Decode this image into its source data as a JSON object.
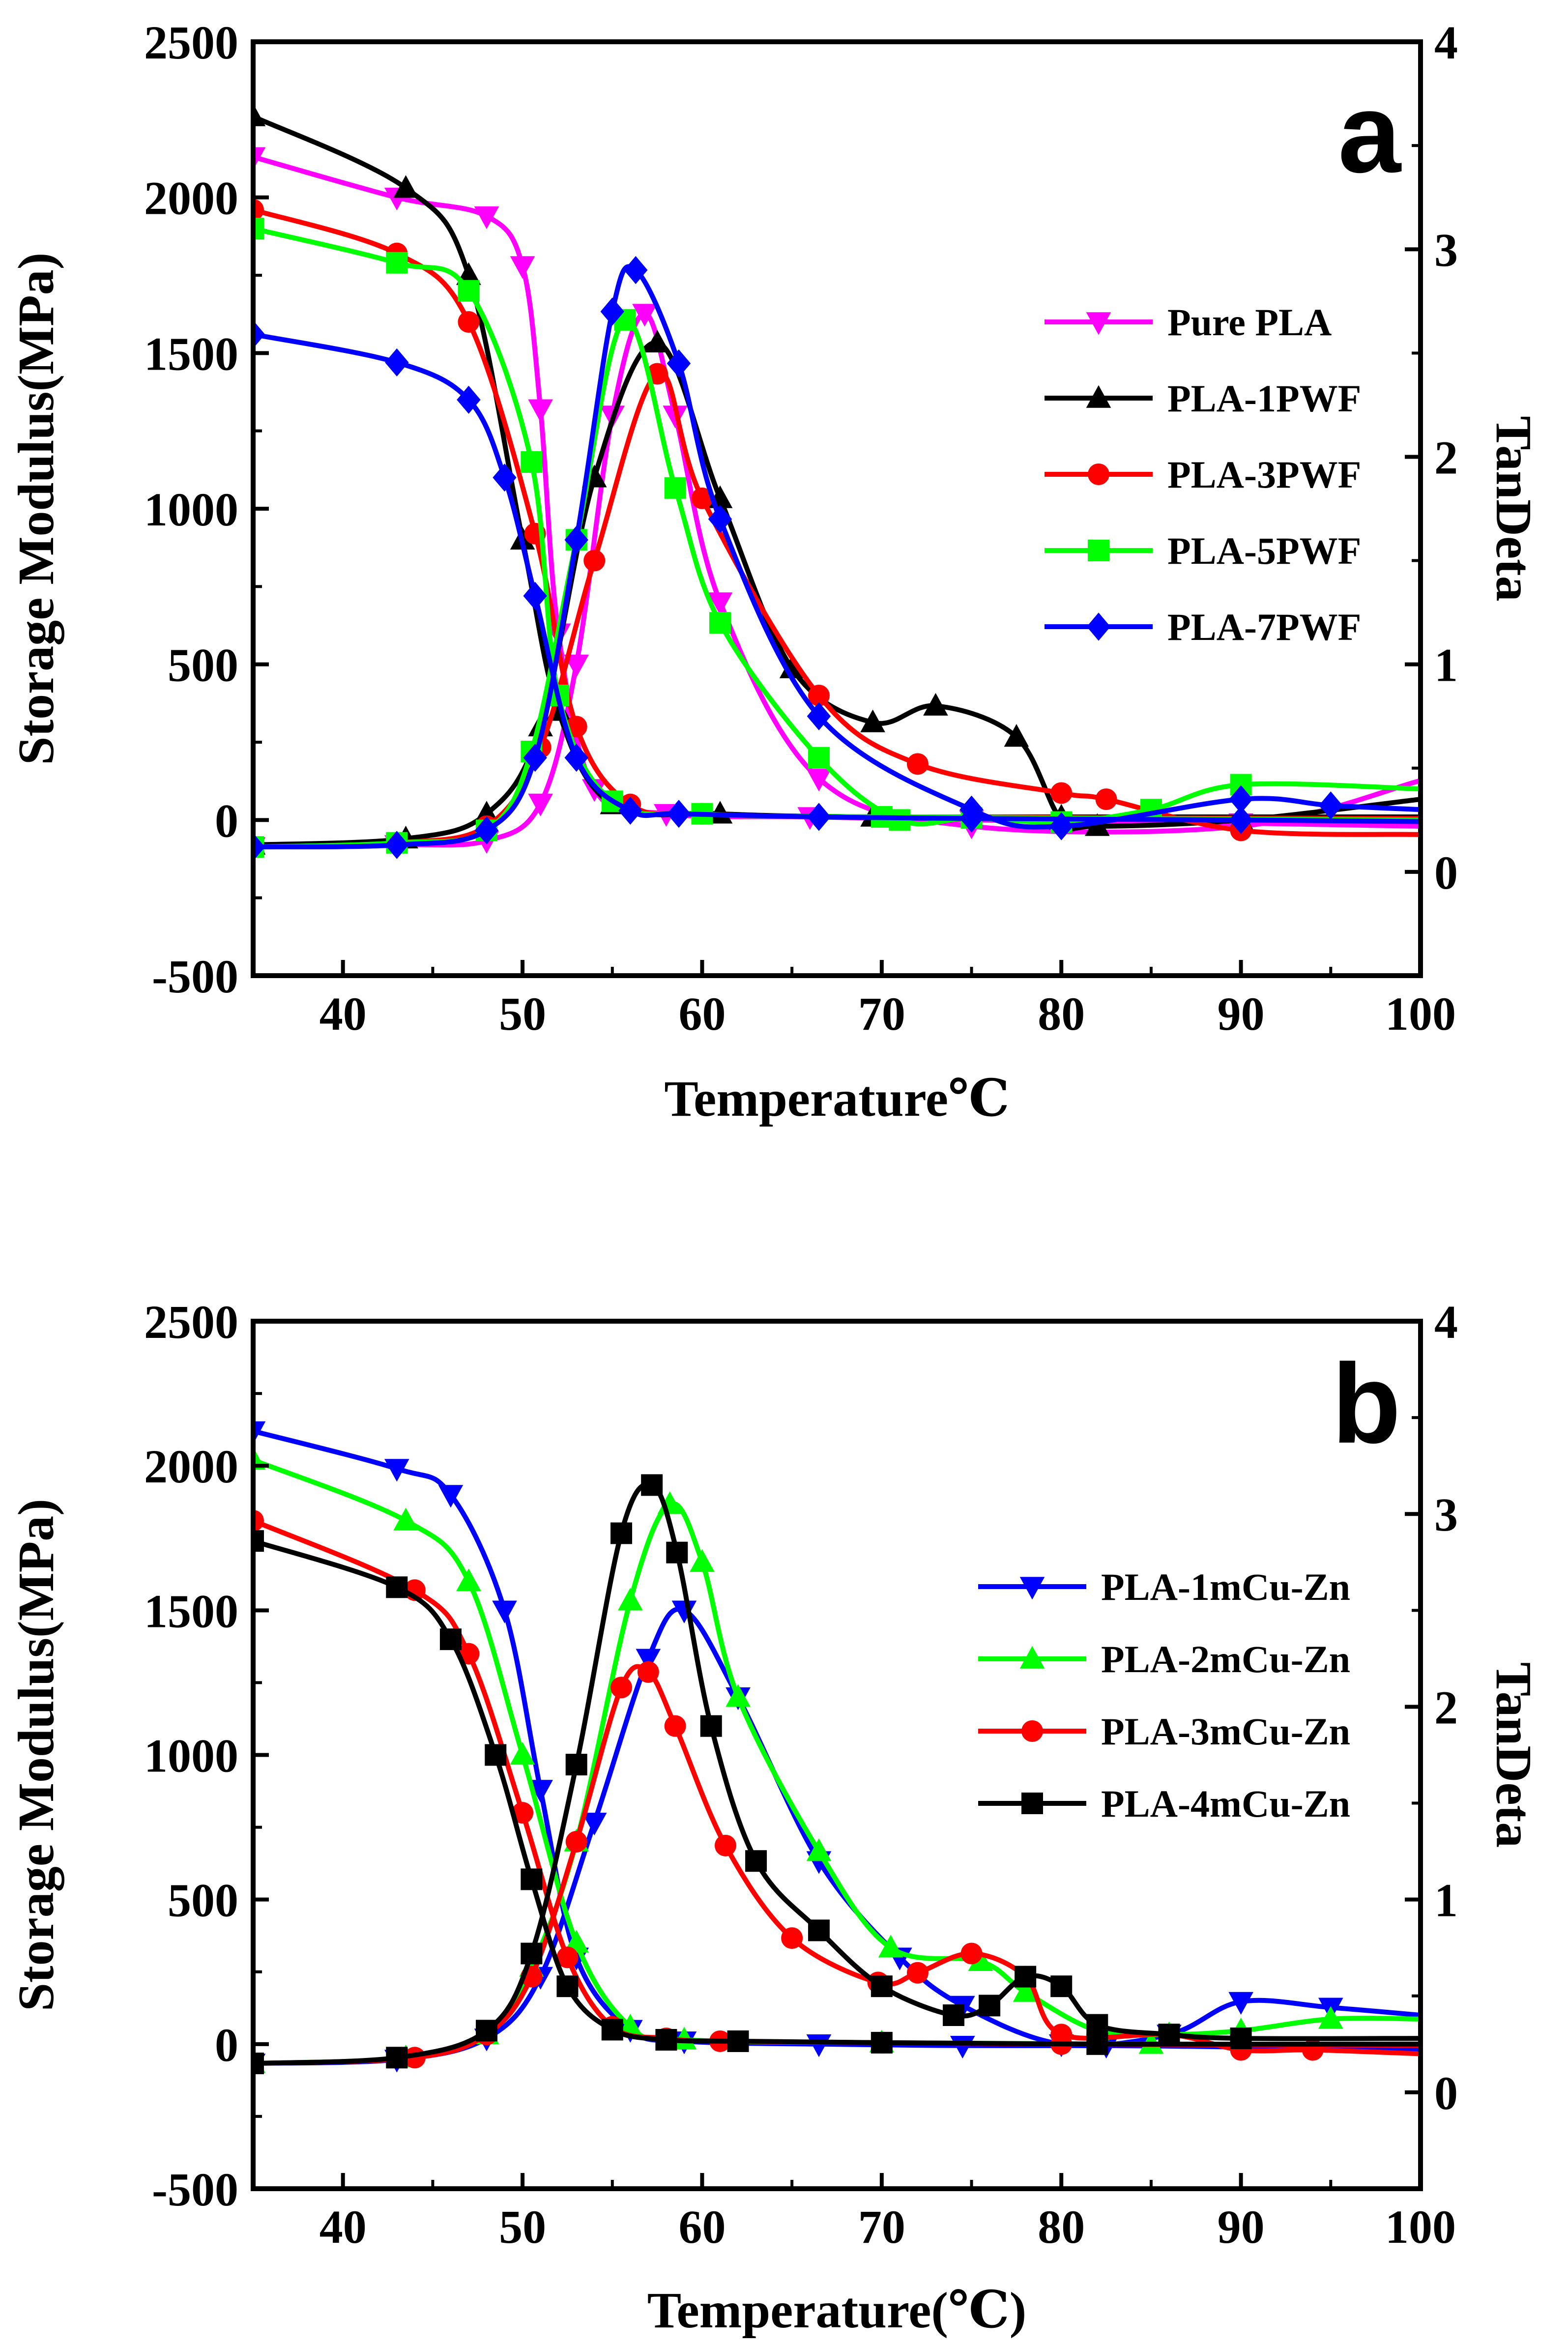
{
  "chart_data": [
    {
      "type": "line",
      "panel_label": "a",
      "xlabel": "Temperature℃",
      "ylabel_left": "Storage Modulus(MPa)",
      "ylabel_right": "TanDeta",
      "xlim": [
        35,
        100
      ],
      "ylim_left": [
        -500,
        2500
      ],
      "ylim_right": [
        -0.5,
        4
      ],
      "x_ticks": [
        40,
        50,
        60,
        70,
        80,
        90,
        100
      ],
      "y_ticks_left": [
        -500,
        0,
        500,
        1000,
        1500,
        2000,
        2500
      ],
      "y_ticks_right": [
        0,
        1,
        2,
        3,
        4
      ],
      "legend_position": "center-right",
      "series": [
        {
          "name": "Pure PLA",
          "color": "#ff00ff",
          "marker": "triangle-down",
          "storage_modulus": {
            "x": [
              35,
              43,
              48,
              50,
              51,
              52,
              54,
              58,
              66,
              75,
              90,
              100
            ],
            "y": [
              2130,
              2000,
              1940,
              1780,
              1320,
              600,
              100,
              20,
              10,
              0,
              -10,
              -20
            ]
          },
          "tan_delta": {
            "x": [
              35,
              43,
              48,
              51,
              53,
              55,
              56.8,
              58.5,
              61,
              66.5,
              75,
              90,
              100
            ],
            "y": [
              0.12,
              0.13,
              0.15,
              0.33,
              1.0,
              2.2,
              2.69,
              2.2,
              1.3,
              0.45,
              0.22,
              0.22,
              0.44
            ]
          }
        },
        {
          "name": "PLA-1PWF",
          "color": "#000000",
          "marker": "triangle-up",
          "storage_modulus": {
            "x": [
              35,
              43.5,
              47,
              50,
              52,
              55,
              61,
              69.5,
              80,
              100
            ],
            "y": [
              2260,
              2030,
              1750,
              900,
              350,
              50,
              20,
              10,
              10,
              10
            ]
          },
          "tan_delta": {
            "x": [
              35,
              43.5,
              48,
              51,
              54,
              57.5,
              61,
              65,
              69.5,
              73,
              77.5,
              80,
              82,
              90,
              100
            ],
            "y": [
              0.13,
              0.16,
              0.28,
              0.7,
              1.9,
              2.55,
              1.8,
              0.98,
              0.72,
              0.8,
              0.65,
              0.25,
              0.22,
              0.25,
              0.35
            ]
          }
        },
        {
          "name": "PLA-3PWF",
          "color": "#ff0000",
          "marker": "circle",
          "storage_modulus": {
            "x": [
              35,
              43,
              47,
              50.7,
              53,
              56,
              60,
              70,
              100
            ],
            "y": [
              1960,
              1820,
              1600,
              920,
              300,
              50,
              20,
              10,
              5
            ]
          },
          "tan_delta": {
            "x": [
              35,
              43,
              48,
              51,
              54,
              57.5,
              60,
              66.5,
              72,
              80,
              82.5,
              90,
              100
            ],
            "y": [
              0.12,
              0.14,
              0.22,
              0.6,
              1.5,
              2.4,
              1.8,
              0.85,
              0.52,
              0.38,
              0.35,
              0.2,
              0.18
            ]
          }
        },
        {
          "name": "PLA-5PWF",
          "color": "#00ff00",
          "marker": "square",
          "storage_modulus": {
            "x": [
              35,
              43,
              47,
              50.5,
              52,
              55,
              60,
              70,
              100
            ],
            "y": [
              1900,
              1790,
              1700,
              1150,
              400,
              60,
              20,
              10,
              0
            ]
          },
          "tan_delta": {
            "x": [
              35,
              43,
              48,
              50.5,
              53,
              55.7,
              58.5,
              61,
              66.5,
              71,
              75,
              80,
              85,
              90,
              100
            ],
            "y": [
              0.12,
              0.14,
              0.2,
              0.58,
              1.6,
              2.66,
              1.85,
              1.2,
              0.55,
              0.25,
              0.26,
              0.24,
              0.3,
              0.42,
              0.4
            ]
          }
        },
        {
          "name": "PLA-7PWF",
          "color": "#0000ff",
          "marker": "diamond",
          "storage_modulus": {
            "x": [
              35,
              43,
              47,
              49,
              50.7,
              53,
              56,
              58.7,
              66.5,
              75,
              90,
              100
            ],
            "y": [
              1560,
              1470,
              1350,
              1100,
              720,
              200,
              30,
              20,
              10,
              5,
              0,
              -5
            ]
          },
          "tan_delta": {
            "x": [
              35,
              43,
              48,
              50.7,
              53,
              55,
              56.3,
              58.7,
              61,
              66.5,
              75,
              80,
              90,
              95,
              100
            ],
            "y": [
              0.12,
              0.13,
              0.2,
              0.55,
              1.6,
              2.7,
              2.9,
              2.45,
              1.7,
              0.75,
              0.3,
              0.22,
              0.35,
              0.32,
              0.3
            ]
          }
        }
      ]
    },
    {
      "type": "line",
      "panel_label": "b",
      "xlabel": "Temperature(℃)",
      "ylabel_left": "Storage Modulus(MPa)",
      "ylabel_right": "TanDeta",
      "xlim": [
        35,
        100
      ],
      "ylim_left": [
        -500,
        2500
      ],
      "ylim_right": [
        -0.5,
        4
      ],
      "x_ticks": [
        40,
        50,
        60,
        70,
        80,
        90,
        100
      ],
      "y_ticks_left": [
        -500,
        0,
        500,
        1000,
        1500,
        2000,
        2500
      ],
      "y_ticks_right": [
        0,
        1,
        2,
        3,
        4
      ],
      "legend_position": "center-right",
      "series": [
        {
          "name": "PLA-1mCu-Zn",
          "color": "#0000ff",
          "marker": "triangle-down",
          "storage_modulus": {
            "x": [
              35,
              43,
              46,
              49,
              51,
              53,
              56,
              59,
              66.5,
              74.5,
              82.5,
              90,
              100
            ],
            "y": [
              2120,
              1990,
              1900,
              1500,
              880,
              300,
              50,
              10,
              0,
              -5,
              -5,
              -10,
              -20
            ]
          },
          "tan_delta": {
            "x": [
              35,
              43,
              48,
              51,
              54,
              57,
              59,
              62,
              66.5,
              71,
              74.5,
              80,
              86,
              90,
              95,
              100
            ],
            "y": [
              0.15,
              0.17,
              0.28,
              0.6,
              1.4,
              2.25,
              2.5,
              2.05,
              1.2,
              0.7,
              0.45,
              0.25,
              0.3,
              0.47,
              0.44,
              0.4
            ]
          }
        },
        {
          "name": "PLA-2mCu-Zn",
          "color": "#00ff00",
          "marker": "triangle-up",
          "storage_modulus": {
            "x": [
              35,
              43.5,
              47,
              50,
              53,
              56,
              59,
              70,
              85,
              100
            ],
            "y": [
              2020,
              1810,
              1600,
              1000,
              350,
              60,
              15,
              5,
              0,
              0
            ]
          },
          "tan_delta": {
            "x": [
              35,
              43.5,
              48,
              50.5,
              53,
              56,
              58.2,
              60,
              62,
              66.5,
              70.5,
              75.5,
              78,
              82,
              86,
              90,
              95,
              100
            ],
            "y": [
              0.15,
              0.18,
              0.3,
              0.65,
              1.3,
              2.55,
              3.05,
              2.75,
              2.05,
              1.25,
              0.75,
              0.68,
              0.52,
              0.32,
              0.3,
              0.32,
              0.38,
              0.38
            ]
          }
        },
        {
          "name": "PLA-3mCu-Zn",
          "color": "#ff0000",
          "marker": "circle",
          "storage_modulus": {
            "x": [
              35,
              44,
              47,
              50,
              52.5,
              55,
              58,
              61,
              70,
              80,
              100
            ],
            "y": [
              1810,
              1570,
              1350,
              800,
              300,
              60,
              20,
              10,
              5,
              0,
              -5
            ]
          },
          "tan_delta": {
            "x": [
              35,
              44,
              48,
              50.5,
              53,
              55.5,
              57,
              58.5,
              61.3,
              65,
              69.8,
              72,
              75,
              78,
              80,
              86,
              90,
              94,
              100
            ],
            "y": [
              0.15,
              0.18,
              0.3,
              0.6,
              1.3,
              2.1,
              2.18,
              1.9,
              1.28,
              0.8,
              0.57,
              0.62,
              0.72,
              0.6,
              0.3,
              0.3,
              0.22,
              0.22,
              0.2
            ]
          }
        },
        {
          "name": "PLA-4mCu-Zn",
          "color": "#000000",
          "marker": "square",
          "storage_modulus": {
            "x": [
              35,
              43,
              46,
              48.5,
              50.5,
              52.5,
              55,
              58,
              62,
              70,
              82,
              100
            ],
            "y": [
              1740,
              1580,
              1400,
              1000,
              570,
              200,
              50,
              15,
              10,
              5,
              0,
              0
            ]
          },
          "tan_delta": {
            "x": [
              35,
              43,
              48,
              50.5,
              53,
              55.5,
              57.2,
              58.6,
              60.5,
              63,
              66.5,
              70,
              74,
              76,
              78,
              80,
              82,
              86,
              90,
              100
            ],
            "y": [
              0.15,
              0.18,
              0.32,
              0.72,
              1.7,
              2.9,
              3.15,
              2.8,
              1.9,
              1.2,
              0.84,
              0.55,
              0.4,
              0.45,
              0.6,
              0.55,
              0.35,
              0.3,
              0.28,
              0.28
            ]
          }
        }
      ]
    }
  ]
}
